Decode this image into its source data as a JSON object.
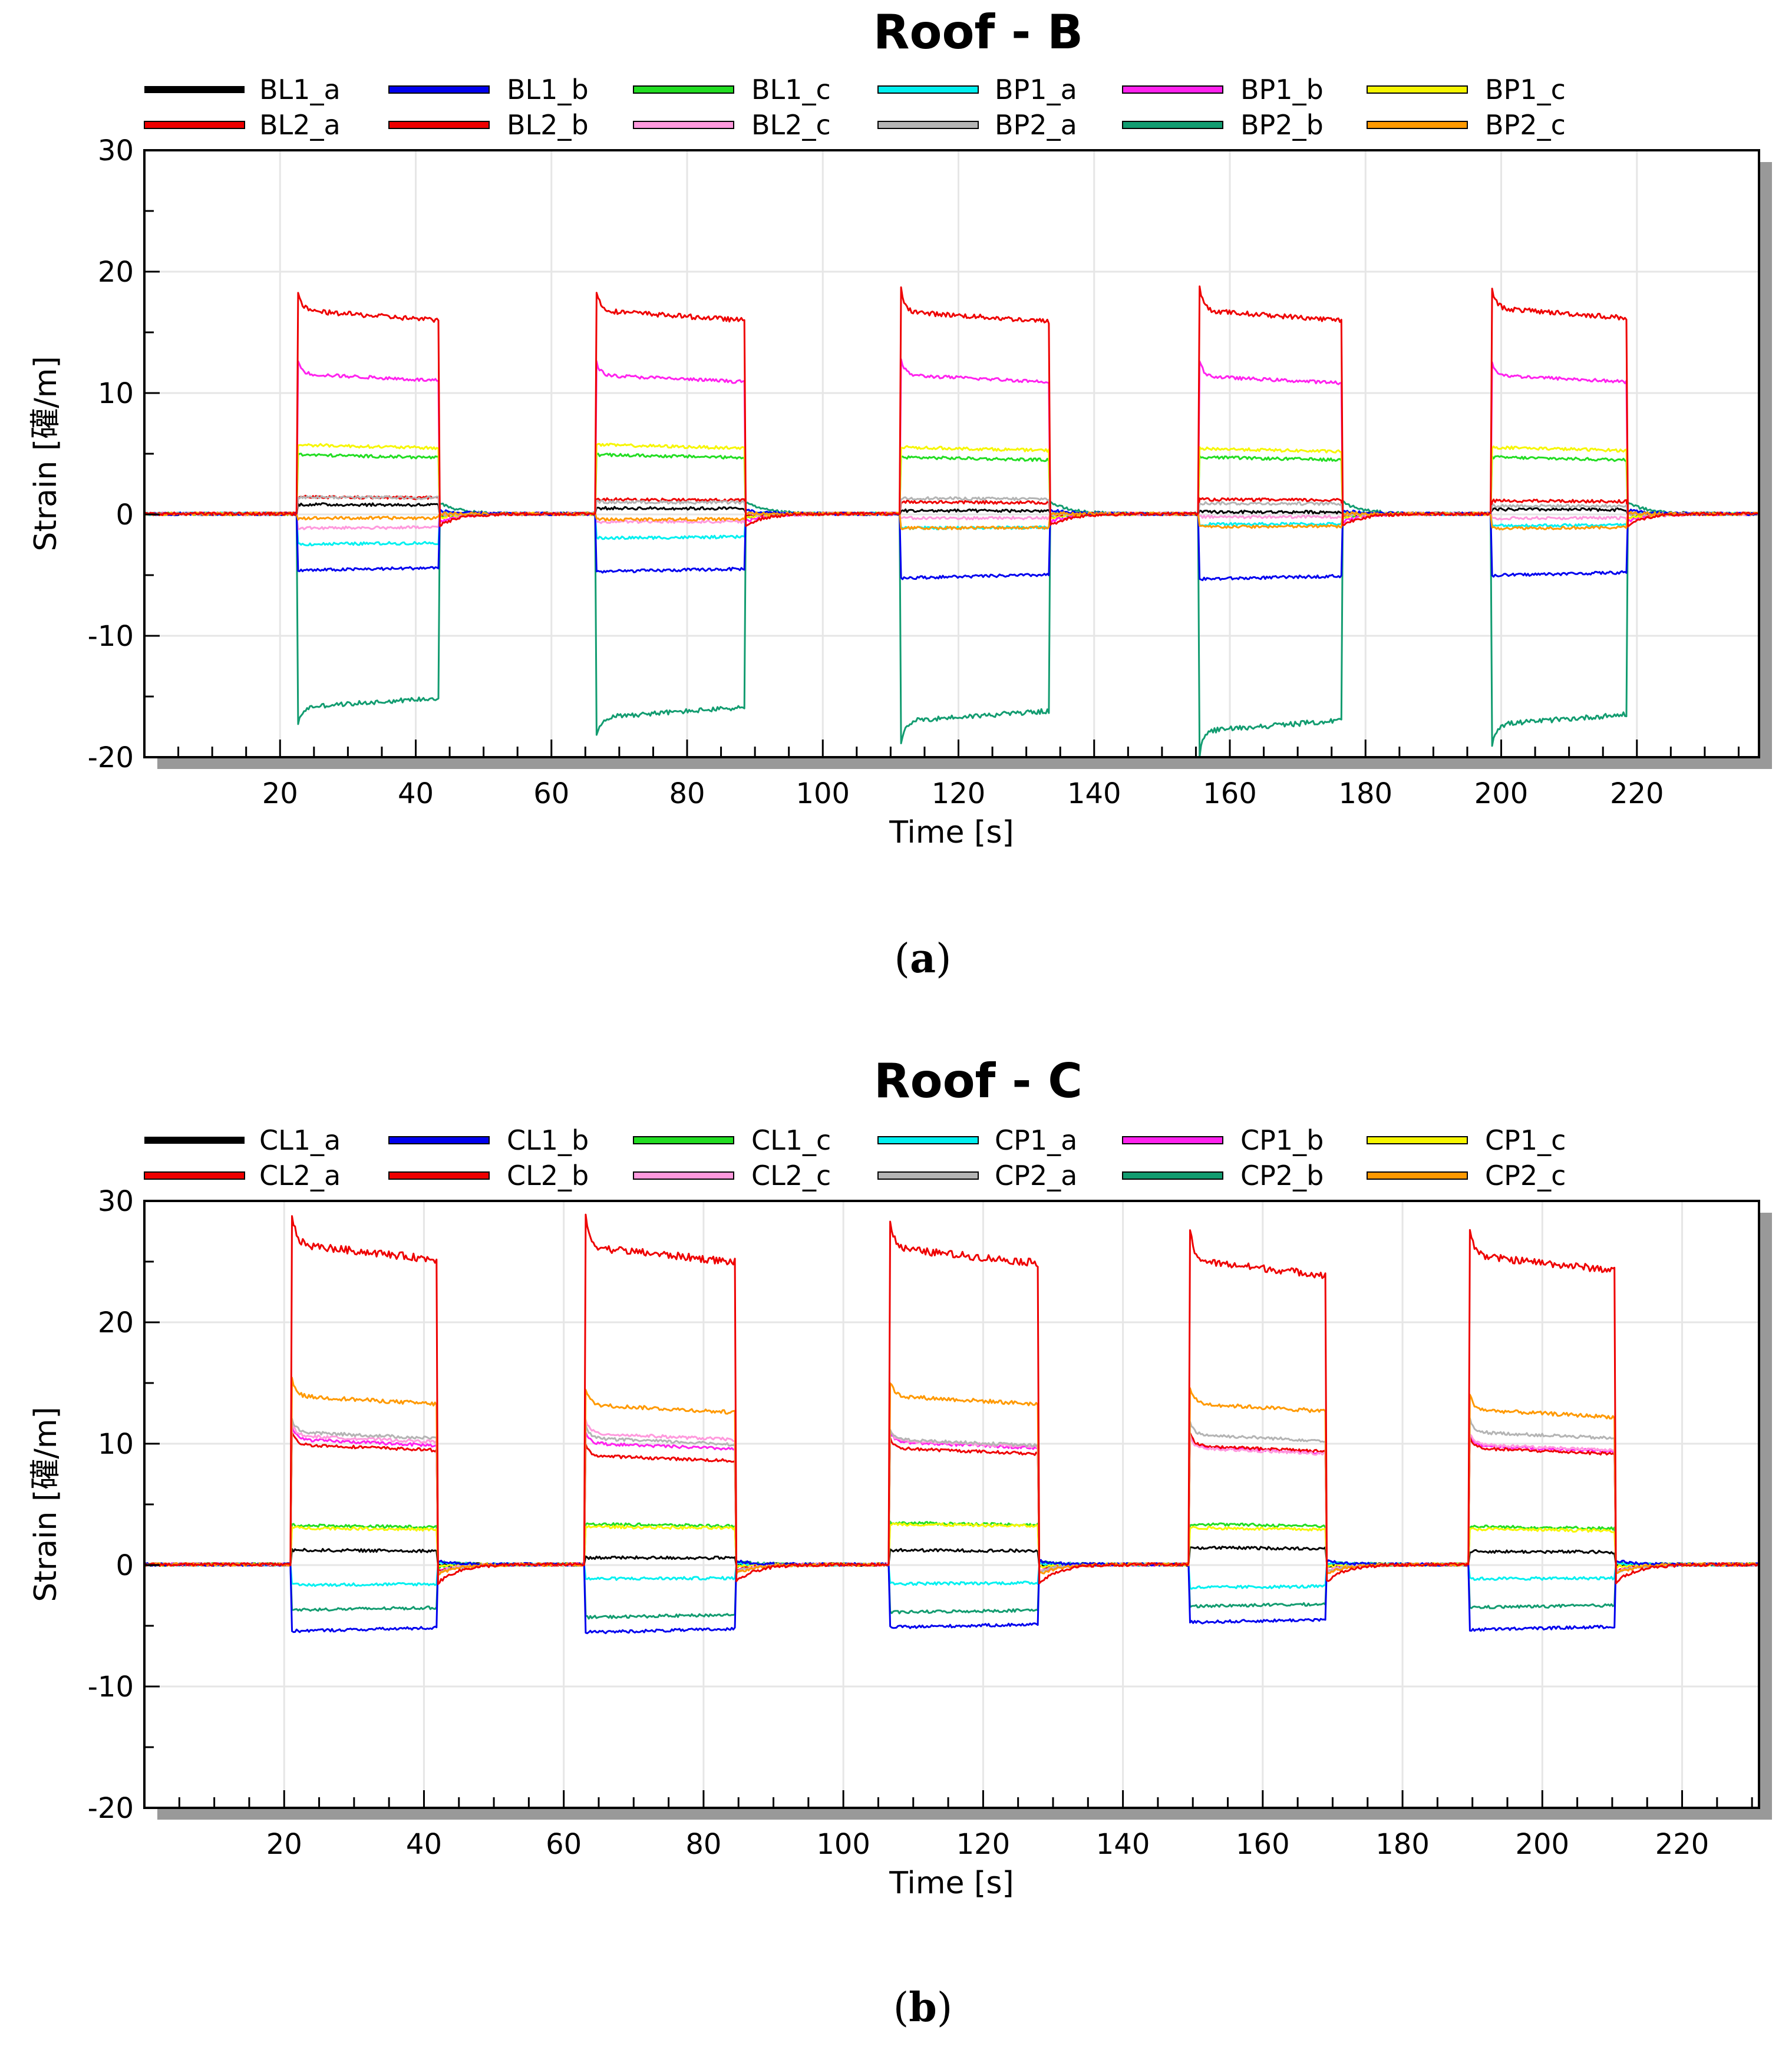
{
  "colors": {
    "BL1_a": "#000000",
    "BL1_b": "#0000ee",
    "BL1_c": "#22dd22",
    "BP1_a": "#00f0f0",
    "BP1_b": "#ff22ee",
    "BP1_c": "#f6f600",
    "BL2_a": "#ee0000",
    "BL2_b": "#ee0000",
    "BL2_c": "#ff99dd",
    "BP2_a": "#b4b4b4",
    "BP2_b": "#129c70",
    "BP2_c": "#ff9900"
  },
  "chart_data": [
    {
      "type": "line",
      "title": "Roof - B",
      "xlabel": "Time [s]",
      "ylabel": "Strain [礶/m]",
      "xlim": [
        0,
        238
      ],
      "ylim": [
        -20,
        30
      ],
      "xticks": [
        20,
        40,
        60,
        80,
        100,
        120,
        140,
        160,
        180,
        200,
        220
      ],
      "yticks": [
        -20,
        -10,
        0,
        10,
        20,
        30
      ],
      "caption": "a",
      "load_periods": [
        [
          22.5,
          43.5
        ],
        [
          66.5,
          88.5
        ],
        [
          111.5,
          133.5
        ],
        [
          155.5,
          176.5
        ],
        [
          198.5,
          218.5
        ]
      ],
      "series": [
        {
          "name": "BL1_a",
          "color_key": "BL1_a",
          "values": [
            0.8,
            0.5,
            0.3,
            0.2,
            0.4
          ]
        },
        {
          "name": "BL1_b",
          "color_key": "BL1_b",
          "values": [
            -4.5,
            -4.6,
            -5.1,
            -5.2,
            -4.9
          ]
        },
        {
          "name": "BL1_c",
          "color_key": "BL1_c",
          "values": [
            4.8,
            4.8,
            4.6,
            4.6,
            4.6
          ]
        },
        {
          "name": "BP1_a",
          "color_key": "BP1_a",
          "values": [
            -2.4,
            -1.9,
            -1.1,
            -0.8,
            -0.9
          ]
        },
        {
          "name": "BP1_b",
          "color_key": "BP1_b",
          "values": [
            11.3,
            11.2,
            11.2,
            11.1,
            11.2
          ]
        },
        {
          "name": "BP1_c",
          "color_key": "BP1_c",
          "values": [
            5.6,
            5.6,
            5.4,
            5.3,
            5.4
          ]
        },
        {
          "name": "BL2_a",
          "color_key": "BL2_a",
          "values": [
            16.4,
            16.4,
            16.3,
            16.4,
            16.6
          ]
        },
        {
          "name": "BL2_b",
          "color_key": "BL2_b",
          "values": [
            1.4,
            1.2,
            1.0,
            1.2,
            1.1
          ]
        },
        {
          "name": "BL2_c",
          "color_key": "BL2_c",
          "values": [
            -1.1,
            -0.6,
            -0.3,
            -0.2,
            -0.3
          ]
        },
        {
          "name": "BP2_a",
          "color_key": "BP2_a",
          "values": [
            1.4,
            1.0,
            1.3,
            0.9,
            0.7
          ]
        },
        {
          "name": "BP2_b",
          "color_key": "BP2_b",
          "values": [
            -15.5,
            -16.3,
            -16.6,
            -17.4,
            -16.9
          ]
        },
        {
          "name": "BP2_c",
          "color_key": "BP2_c",
          "values": [
            -0.3,
            -0.4,
            -1.1,
            -1.0,
            -1.1
          ]
        }
      ]
    },
    {
      "type": "line",
      "title": "Roof - C",
      "xlabel": "Time [s]",
      "ylabel": "Strain [礶/m]",
      "xlim": [
        0,
        231
      ],
      "ylim": [
        -20,
        30
      ],
      "xticks": [
        20,
        40,
        60,
        80,
        100,
        120,
        140,
        160,
        180,
        200,
        220
      ],
      "yticks": [
        -20,
        -10,
        0,
        10,
        20,
        30
      ],
      "caption": "b",
      "load_periods": [
        [
          21,
          42
        ],
        [
          63,
          84.5
        ],
        [
          106.5,
          128
        ],
        [
          149.5,
          169
        ],
        [
          189.5,
          210.5
        ]
      ],
      "series": [
        {
          "name": "CL1_a",
          "color_key": "BL1_a",
          "values": [
            1.2,
            0.6,
            1.2,
            1.4,
            1.1
          ]
        },
        {
          "name": "CL1_b",
          "color_key": "BL1_b",
          "values": [
            -5.3,
            -5.4,
            -5.0,
            -4.6,
            -5.2
          ]
        },
        {
          "name": "CL1_c",
          "color_key": "BL1_c",
          "values": [
            3.2,
            3.3,
            3.4,
            3.3,
            3.1
          ]
        },
        {
          "name": "CP1_a",
          "color_key": "BP1_a",
          "values": [
            -1.6,
            -1.1,
            -1.5,
            -1.8,
            -1.1
          ]
        },
        {
          "name": "CP1_b",
          "color_key": "BP1_b",
          "values": [
            10.1,
            9.8,
            9.9,
            9.5,
            9.6
          ]
        },
        {
          "name": "CP1_c",
          "color_key": "BP1_c",
          "values": [
            3.0,
            3.1,
            3.3,
            3.0,
            2.9
          ]
        },
        {
          "name": "CL2_a",
          "color_key": "BL2_a",
          "values": [
            25.8,
            25.6,
            25.5,
            24.5,
            24.9
          ]
        },
        {
          "name": "CL2_b",
          "color_key": "BL2_b",
          "values": [
            9.7,
            8.8,
            9.4,
            9.6,
            9.4
          ]
        },
        {
          "name": "CL2_c",
          "color_key": "BL2_c",
          "values": [
            10.4,
            10.6,
            10.0,
            9.4,
            9.7
          ]
        },
        {
          "name": "CP2_a",
          "color_key": "BP2_a",
          "values": [
            10.7,
            10.2,
            10.1,
            10.5,
            10.7
          ]
        },
        {
          "name": "CP2_b",
          "color_key": "BP2_b",
          "values": [
            -3.6,
            -4.2,
            -3.8,
            -3.3,
            -3.4
          ]
        },
        {
          "name": "CP2_c",
          "color_key": "BP2_c",
          "values": [
            13.6,
            12.9,
            13.6,
            13.0,
            12.5
          ]
        }
      ]
    }
  ]
}
